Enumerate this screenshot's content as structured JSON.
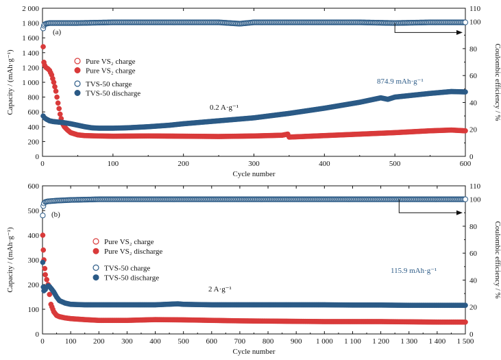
{
  "chart_data": [
    {
      "panel_label": "(a)",
      "type": "scatter",
      "xlabel": "Cycle number",
      "ylabel_left": "Capacity / (mAh·g⁻¹)",
      "ylabel_right": "Coulombic efficiency / %",
      "xlim": [
        0,
        600
      ],
      "ylim_left": [
        0,
        2000
      ],
      "ylim_right": [
        0,
        110
      ],
      "x_ticks": [
        0,
        100,
        200,
        300,
        400,
        500,
        600
      ],
      "x_tick_labels": [
        "0",
        "100",
        "200",
        "300",
        "400",
        "500",
        "600"
      ],
      "y_left_ticks": [
        0,
        200,
        400,
        600,
        800,
        1000,
        1200,
        1400,
        1600,
        1800,
        2000
      ],
      "y_left_tick_labels": [
        "0",
        "200",
        "400",
        "600",
        "800",
        "1 000",
        "1 200",
        "1 400",
        "1 600",
        "1 800",
        "2 000"
      ],
      "y_right_ticks": [
        0,
        20,
        40,
        60,
        80,
        100
      ],
      "y_right_tick_labels": [
        "0",
        "20",
        "40",
        "60",
        "80",
        "100"
      ],
      "y_right_ticks_minor": [
        10,
        30,
        50,
        70,
        90,
        110
      ],
      "grid": false,
      "legend_position": "middle-left",
      "legend": [
        {
          "label": "Pure VS₂ charge",
          "marker": "open",
          "color": "#d93a3a"
        },
        {
          "label": "Pure VS₂ charge",
          "marker": "filled",
          "color": "#d93a3a"
        },
        {
          "label": "TVS-50 charge",
          "marker": "open",
          "color": "#2b5a86"
        },
        {
          "label": "TVS-50 discharge",
          "marker": "filled",
          "color": "#2b5a86"
        }
      ],
      "annotations": [
        {
          "text": "874.9 mAh·g⁻¹",
          "color": "#2b5a86"
        },
        {
          "text": "0.2 A·g⁻¹",
          "color": "#111111"
        }
      ],
      "arrow": {
        "from_x": 500,
        "to_x": 600,
        "at_efficiency": 99,
        "down_to_efficiency": 92
      },
      "series": [
        {
          "name": "Pure VS₂ charge",
          "axis": "left",
          "marker": "filled",
          "color": "#d93a3a",
          "x": [
            1,
            2,
            3,
            5,
            8,
            10,
            13,
            16,
            19,
            22,
            25,
            28,
            31,
            35,
            40,
            50,
            60,
            80,
            100,
            150,
            200,
            250,
            300,
            340,
            348,
            350,
            355,
            400,
            450,
            500,
            550,
            580,
            600
          ],
          "y": [
            1480,
            1270,
            1230,
            1200,
            1180,
            1160,
            1100,
            1000,
            880,
            720,
            570,
            450,
            400,
            360,
            320,
            290,
            280,
            275,
            272,
            275,
            272,
            268,
            275,
            285,
            300,
            260,
            262,
            280,
            300,
            320,
            345,
            355,
            345
          ]
        },
        {
          "name": "TVS-50 discharge",
          "axis": "left",
          "marker": "filled",
          "color": "#2b5a86",
          "x": [
            1,
            3,
            5,
            10,
            15,
            20,
            30,
            40,
            50,
            60,
            70,
            80,
            100,
            120,
            150,
            180,
            200,
            250,
            300,
            350,
            400,
            450,
            480,
            490,
            500,
            550,
            580,
            600
          ],
          "y": [
            545,
            520,
            505,
            480,
            470,
            465,
            455,
            440,
            420,
            400,
            385,
            380,
            380,
            385,
            400,
            420,
            440,
            480,
            520,
            580,
            650,
            730,
            790,
            770,
            800,
            850,
            875,
            870
          ]
        },
        {
          "name": "TVS-50 charge",
          "axis": "right",
          "marker": "open",
          "color": "#2b5a86",
          "x": [
            1,
            2,
            3,
            5,
            10,
            20,
            50,
            100,
            150,
            200,
            250,
            280,
            300,
            350,
            400,
            450,
            500,
            550,
            600
          ],
          "y": [
            95,
            97,
            98,
            98.5,
            99,
            99,
            99,
            99.5,
            99.5,
            99.5,
            99.5,
            98.5,
            99.5,
            99.5,
            99.5,
            99.5,
            99,
            99.5,
            99.5
          ]
        }
      ]
    },
    {
      "panel_label": "(b)",
      "type": "scatter",
      "xlabel": "Cycle number",
      "ylabel_left": "Capacity / (mAh·g⁻¹)",
      "ylabel_right": "Coulombic efficiency / %",
      "xlim": [
        0,
        1500
      ],
      "ylim_left": [
        0,
        600
      ],
      "ylim_right": [
        0,
        110
      ],
      "x_ticks": [
        0,
        100,
        200,
        300,
        400,
        500,
        600,
        700,
        800,
        900,
        1000,
        1100,
        1200,
        1300,
        1400,
        1500
      ],
      "x_tick_labels": [
        "0",
        "100",
        "200",
        "300",
        "400",
        "500",
        "600",
        "700",
        "800",
        "900",
        "1 000",
        "1 100",
        "1 200",
        "1 300",
        "1 400",
        "1 500"
      ],
      "y_left_ticks": [
        0,
        100,
        200,
        300,
        400,
        500,
        600
      ],
      "y_left_tick_labels": [
        "0",
        "100",
        "200",
        "300",
        "400",
        "500",
        "600"
      ],
      "y_right_ticks": [
        0,
        20,
        40,
        60,
        80,
        100
      ],
      "y_right_tick_labels": [
        "0",
        "20",
        "40",
        "60",
        "80",
        "100"
      ],
      "y_right_ticks_minor": [
        10,
        30,
        50,
        70,
        90,
        110
      ],
      "grid": false,
      "legend_position": "middle-left",
      "legend": [
        {
          "label": "Pure VS₂ charge",
          "marker": "open",
          "color": "#d93a3a"
        },
        {
          "label": "Pure VS₂ discharge",
          "marker": "filled",
          "color": "#d93a3a"
        },
        {
          "label": "TVS-50 charge",
          "marker": "open",
          "color": "#2b5a86"
        },
        {
          "label": "TVS-50 discharge",
          "marker": "filled",
          "color": "#2b5a86"
        }
      ],
      "annotations": [
        {
          "text": "115.9 mAh·g⁻¹",
          "color": "#2b5a86"
        },
        {
          "text": "2 A·g⁻¹",
          "color": "#111111"
        }
      ],
      "arrow": {
        "from_x": 1265,
        "to_x": 1500,
        "at_efficiency": 100,
        "down_to_efficiency": 90
      },
      "series": [
        {
          "name": "Pure VS₂ discharge",
          "axis": "left",
          "marker": "filled",
          "color": "#d93a3a",
          "x": [
            1,
            3,
            5,
            8,
            10,
            15,
            20,
            25,
            30,
            40,
            50,
            60,
            80,
            100,
            150,
            200,
            300,
            400,
            500,
            600,
            700,
            800,
            900,
            1000,
            1200,
            1400,
            1500
          ],
          "y": [
            400,
            340,
            300,
            265,
            240,
            220,
            200,
            160,
            120,
            90,
            75,
            70,
            65,
            62,
            58,
            55,
            55,
            58,
            57,
            55,
            53,
            52,
            51,
            50,
            50,
            48,
            48
          ]
        },
        {
          "name": "TVS-50 discharge",
          "axis": "left",
          "marker": "filled",
          "color": "#2b5a86",
          "x": [
            1,
            3,
            5,
            10,
            15,
            20,
            25,
            30,
            40,
            50,
            60,
            80,
            100,
            150,
            200,
            300,
            400,
            480,
            500,
            600,
            700,
            800,
            900,
            1000,
            1100,
            1200,
            1300,
            1400,
            1500
          ],
          "y": [
            290,
            190,
            175,
            180,
            190,
            195,
            192,
            185,
            170,
            150,
            135,
            125,
            120,
            118,
            118,
            118,
            118,
            122,
            120,
            118,
            118,
            118,
            118,
            118,
            117,
            117,
            116,
            116,
            116
          ]
        },
        {
          "name": "TVS-50 charge",
          "axis": "right",
          "marker": "open",
          "color": "#2b5a86",
          "x": [
            1,
            3,
            5,
            10,
            20,
            50,
            100,
            200,
            300,
            400,
            500,
            600,
            700,
            800,
            900,
            1000,
            1100,
            1200,
            1300,
            1400,
            1500
          ],
          "y": [
            88,
            95,
            97,
            98,
            98.5,
            99,
            99.5,
            100,
            100,
            100,
            100,
            100,
            100,
            100,
            100,
            100,
            100,
            100,
            100,
            100,
            100
          ]
        }
      ]
    }
  ]
}
